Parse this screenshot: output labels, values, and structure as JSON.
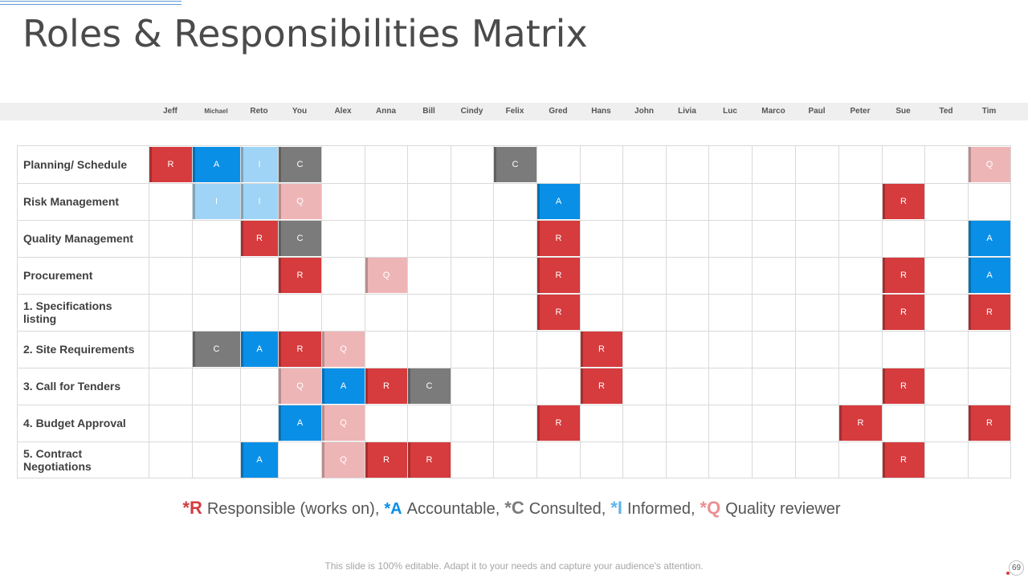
{
  "title": "Roles & Responsibilities Matrix",
  "people": [
    "Jeff",
    "Michael",
    "Reto",
    "You",
    "Alex",
    "Anna",
    "Bill",
    "Cindy",
    "Felix",
    "Gred",
    "Hans",
    "John",
    "Livia",
    "Luc",
    "Marco",
    "Paul",
    "Peter",
    "Sue",
    "Ted",
    "Tim"
  ],
  "tasks": [
    {
      "label": "Planning/ Schedule",
      "cells": [
        [
          "Jeff",
          "R"
        ],
        [
          "Michael",
          "A"
        ],
        [
          "Reto",
          "I"
        ],
        [
          "You",
          "C"
        ],
        [
          "Felix",
          "C"
        ],
        [
          "Tim",
          "Q"
        ]
      ]
    },
    {
      "label": "Risk Management",
      "cells": [
        [
          "Michael",
          "I"
        ],
        [
          "Reto",
          "I"
        ],
        [
          "You",
          "Q"
        ],
        [
          "Gred",
          "A"
        ],
        [
          "Sue",
          "R"
        ]
      ]
    },
    {
      "label": "Quality Management",
      "cells": [
        [
          "Reto",
          "R"
        ],
        [
          "You",
          "C"
        ],
        [
          "Gred",
          "R"
        ],
        [
          "Tim",
          "A"
        ]
      ]
    },
    {
      "label": "Procurement",
      "cells": [
        [
          "You",
          "R"
        ],
        [
          "Anna",
          "Q"
        ],
        [
          "Gred",
          "R"
        ],
        [
          "Sue",
          "R"
        ],
        [
          "Tim",
          "A"
        ]
      ]
    },
    {
      "label": "1. Specifications listing",
      "cells": [
        [
          "Gred",
          "R"
        ],
        [
          "Sue",
          "R"
        ],
        [
          "Tim",
          "R"
        ]
      ]
    },
    {
      "label": "2. Site Requirements",
      "cells": [
        [
          "Michael",
          "C"
        ],
        [
          "Reto",
          "A"
        ],
        [
          "You",
          "R"
        ],
        [
          "Alex",
          "Q"
        ],
        [
          "Hans",
          "R"
        ]
      ]
    },
    {
      "label": "3. Call for Tenders",
      "cells": [
        [
          "You",
          "Q"
        ],
        [
          "Alex",
          "A"
        ],
        [
          "Anna",
          "R"
        ],
        [
          "Bill",
          "C"
        ],
        [
          "Hans",
          "R"
        ],
        [
          "Sue",
          "R"
        ]
      ]
    },
    {
      "label": "4. Budget Approval",
      "cells": [
        [
          "You",
          "A"
        ],
        [
          "Alex",
          "Q"
        ],
        [
          "Gred",
          "R"
        ],
        [
          "Peter",
          "R"
        ],
        [
          "Tim",
          "R"
        ]
      ]
    },
    {
      "label": "5. Contract Negotiations",
      "cells": [
        [
          "Reto",
          "A"
        ],
        [
          "Alex",
          "Q"
        ],
        [
          "Anna",
          "R"
        ],
        [
          "Bill",
          "R"
        ],
        [
          "Sue",
          "R"
        ]
      ]
    }
  ],
  "legend": [
    {
      "key": "*R",
      "code": "R",
      "label": "Responsible (works on),"
    },
    {
      "key": "*A",
      "code": "A",
      "label": "Accountable,"
    },
    {
      "key": "*C",
      "code": "C",
      "label": "Consulted,"
    },
    {
      "key": "*I",
      "code": "I",
      "label": "Informed,"
    },
    {
      "key": "*Q",
      "code": "Q",
      "label": "Quality reviewer"
    }
  ],
  "footnote": "This slide is 100% editable. Adapt it to your needs and capture your audience's attention.",
  "page_number": "69",
  "colors": {
    "R": "#d63b3d",
    "A": "#0a8fe6",
    "C": "#7b7b7b",
    "I": "#9fd4f6",
    "Q": "#eeb5b7",
    "accent": "#5b9bd5"
  }
}
